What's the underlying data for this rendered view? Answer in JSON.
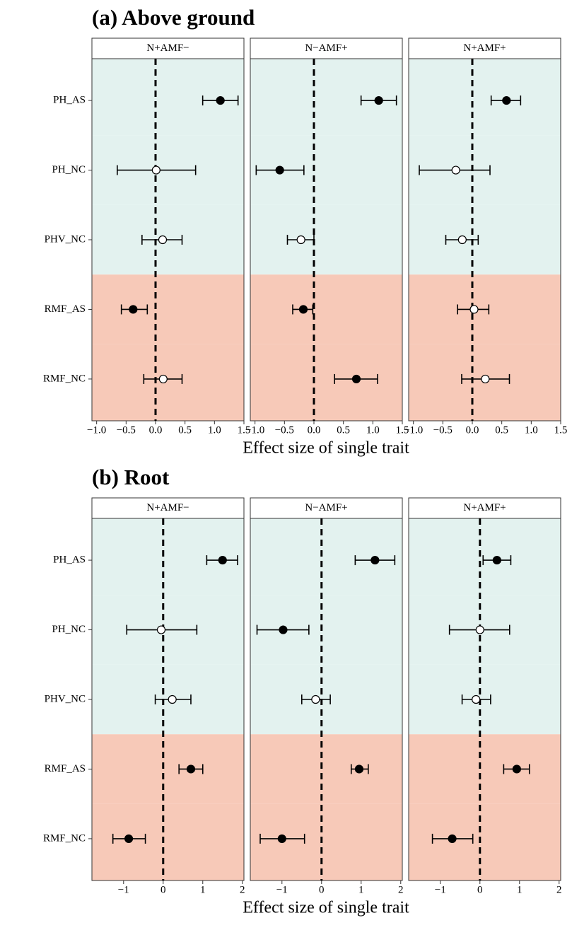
{
  "chart_data": [
    {
      "type": "forest",
      "title": "(a) Above ground",
      "x_label": "Effect size of single trait",
      "categories": [
        "PH_AS",
        "PH_NC",
        "PHV_NC",
        "RMF_AS",
        "RMF_NC"
      ],
      "category_colors": [
        "#e3f2ef",
        "#e3f2ef",
        "#e3f2ef",
        "#f7c9b8",
        "#f7c9b8"
      ],
      "xlim": [
        -1.08,
        1.5
      ],
      "xticks": [
        {
          "value": -1.0,
          "label": "−1.0"
        },
        {
          "value": -0.5,
          "label": "−0.5"
        },
        {
          "value": 0,
          "label": "0.0"
        },
        0.5,
        {
          "value": 1,
          "label": "1.0"
        },
        1.5
      ],
      "refline": 0,
      "panels": [
        {
          "name": "N+AMF−",
          "values": [
            1.1,
            0.01,
            0.12,
            -0.38,
            0.13
          ],
          "lower": [
            0.8,
            -0.65,
            -0.23,
            -0.58,
            -0.2
          ],
          "upper": [
            1.4,
            0.68,
            0.45,
            -0.14,
            0.45
          ],
          "filled": [
            true,
            false,
            false,
            true,
            false
          ]
        },
        {
          "name": "N−AMF+",
          "values": [
            1.1,
            -0.58,
            -0.22,
            -0.18,
            0.72
          ],
          "lower": [
            0.8,
            -0.98,
            -0.45,
            -0.36,
            0.35
          ],
          "upper": [
            1.4,
            -0.17,
            0.0,
            -0.02,
            1.08
          ],
          "filled": [
            true,
            true,
            false,
            true,
            true
          ]
        },
        {
          "name": "N+AMF+",
          "values": [
            0.58,
            -0.28,
            -0.17,
            0.03,
            0.22
          ],
          "lower": [
            0.32,
            -0.9,
            -0.45,
            -0.25,
            -0.18
          ],
          "upper": [
            0.82,
            0.3,
            0.1,
            0.28,
            0.63
          ],
          "filled": [
            true,
            false,
            false,
            false,
            false
          ]
        }
      ]
    },
    {
      "type": "forest",
      "title": "(b) Root",
      "x_label": "Effect size of single trait",
      "categories": [
        "PH_AS",
        "PH_NC",
        "PHV_NC",
        "RMF_AS",
        "RMF_NC"
      ],
      "category_colors": [
        "#e3f2ef",
        "#e3f2ef",
        "#e3f2ef",
        "#f7c9b8",
        "#f7c9b8"
      ],
      "xlim": [
        -1.8,
        2.04
      ],
      "xticks": [
        {
          "value": -1,
          "label": "−1"
        },
        0,
        1,
        2
      ],
      "refline": 0,
      "panels": [
        {
          "name": "N+AMF−",
          "values": [
            1.5,
            -0.05,
            0.23,
            0.7,
            -0.87
          ],
          "lower": [
            1.1,
            -0.92,
            -0.2,
            0.4,
            -1.27
          ],
          "upper": [
            1.88,
            0.85,
            0.7,
            1.0,
            -0.45
          ],
          "filled": [
            true,
            false,
            false,
            true,
            true
          ]
        },
        {
          "name": "N−AMF+",
          "values": [
            1.35,
            -0.97,
            -0.15,
            0.95,
            -1.0
          ],
          "lower": [
            0.85,
            -1.63,
            -0.5,
            0.75,
            -1.55
          ],
          "upper": [
            1.85,
            -0.32,
            0.22,
            1.18,
            -0.43
          ],
          "filled": [
            true,
            true,
            false,
            true,
            true
          ]
        },
        {
          "name": "N+AMF+",
          "values": [
            0.43,
            0,
            -0.1,
            0.93,
            -0.7
          ],
          "lower": [
            0.08,
            -0.77,
            -0.45,
            0.6,
            -1.2
          ],
          "upper": [
            0.78,
            0.75,
            0.27,
            1.25,
            -0.18
          ],
          "filled": [
            true,
            false,
            false,
            true,
            true
          ]
        }
      ]
    }
  ]
}
